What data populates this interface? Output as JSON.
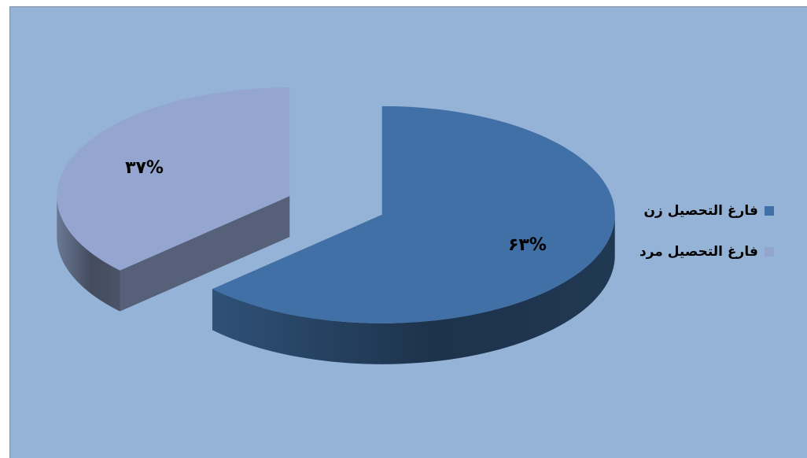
{
  "chart_data": {
    "type": "pie",
    "style": "3d-exploded",
    "categories": [
      "فارغ التحصيل زن",
      "فارغ التحصيل مرد"
    ],
    "values": [
      63,
      37
    ],
    "data_labels": [
      "۶۳%",
      "۳۷%"
    ],
    "colors": [
      "#4170a6",
      "#94a6cf"
    ],
    "background": "#95b3d7",
    "legend_position": "right",
    "title": ""
  }
}
